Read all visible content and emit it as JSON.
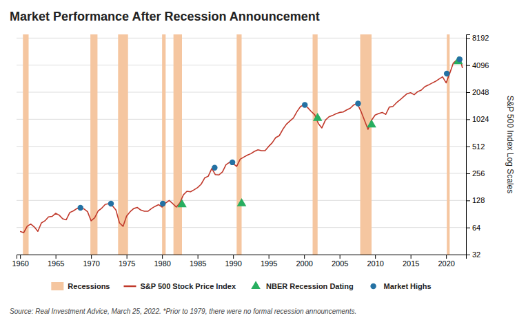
{
  "chart_data": {
    "type": "line",
    "title": "Market Performance After Recession Announcement",
    "ylabel": "S&P 500 Index Log Scales",
    "source": "Source: Real Investment Advice, March 25, 2022. *Prior to 1979, there were no formal recession announcements.",
    "log": "y",
    "grid": "y",
    "legend": "bottom",
    "xlim": [
      1959.5,
      2022.8
    ],
    "xticks": [
      1960,
      1965,
      1970,
      1975,
      1980,
      1985,
      1990,
      1995,
      2000,
      2005,
      2010,
      2015,
      2020
    ],
    "ylim": [
      32,
      9000
    ],
    "yticks": [
      32,
      64,
      128,
      256,
      512,
      1024,
      2048,
      4096,
      8192
    ],
    "recessions": {
      "name": "Recessions",
      "color": "#f5c6a0",
      "periods": [
        [
          1960.4,
          1961.2
        ],
        [
          1969.9,
          1970.9
        ],
        [
          1973.8,
          1975.2
        ],
        [
          1980.0,
          1980.5
        ],
        [
          1981.6,
          1982.8
        ],
        [
          1990.5,
          1991.2
        ],
        [
          2001.2,
          2001.9
        ],
        [
          2007.9,
          2009.5
        ],
        [
          2020.1,
          2020.5
        ]
      ]
    },
    "series": [
      {
        "name": "S&P 500 Stock Price Index",
        "type": "line",
        "color": "#c0392b",
        "x": [
          1960,
          1960.5,
          1961,
          1961.5,
          1962,
          1962.5,
          1963,
          1963.5,
          1964,
          1964.5,
          1965,
          1965.5,
          1966,
          1966.5,
          1967,
          1967.5,
          1968,
          1968.5,
          1969,
          1969.5,
          1970,
          1970.5,
          1971,
          1971.5,
          1972,
          1972.5,
          1973,
          1973.5,
          1974,
          1974.5,
          1975,
          1975.5,
          1976,
          1976.5,
          1977,
          1977.5,
          1978,
          1978.5,
          1979,
          1979.5,
          1980,
          1980.5,
          1981,
          1981.5,
          1982,
          1982.5,
          1983,
          1983.5,
          1984,
          1984.5,
          1985,
          1985.5,
          1986,
          1986.5,
          1987,
          1987.5,
          1988,
          1988.5,
          1989,
          1989.5,
          1990,
          1990.5,
          1991,
          1991.5,
          1992,
          1992.5,
          1993,
          1993.5,
          1994,
          1994.5,
          1995,
          1995.5,
          1996,
          1996.5,
          1997,
          1997.5,
          1998,
          1998.5,
          1999,
          1999.5,
          2000,
          2000.5,
          2001,
          2001.5,
          2002,
          2002.5,
          2003,
          2003.5,
          2004,
          2004.5,
          2005,
          2005.5,
          2006,
          2006.5,
          2007,
          2007.5,
          2008,
          2008.5,
          2009,
          2009.5,
          2010,
          2010.5,
          2011,
          2011.5,
          2012,
          2012.5,
          2013,
          2013.5,
          2014,
          2014.5,
          2015,
          2015.5,
          2016,
          2016.5,
          2017,
          2017.5,
          2018,
          2018.5,
          2019,
          2019.5,
          2020,
          2020.5,
          2021,
          2021.5,
          2022,
          2022.3
        ],
        "values": [
          58,
          56,
          66,
          70,
          65,
          58,
          72,
          76,
          84,
          85,
          92,
          88,
          80,
          78,
          94,
          98,
          104,
          106,
          103,
          96,
          76,
          82,
          98,
          105,
          116,
          118,
          112,
          100,
          72,
          66,
          86,
          96,
          104,
          107,
          100,
          97,
          97,
          104,
          110,
          115,
          108,
          120,
          128,
          118,
          108,
          120,
          148,
          162,
          160,
          168,
          178,
          194,
          228,
          238,
          290,
          248,
          246,
          266,
          320,
          340,
          330,
          306,
          368,
          388,
          408,
          424,
          450,
          468,
          458,
          458,
          510,
          560,
          640,
          672,
          790,
          900,
          980,
          1060,
          1248,
          1420,
          1480,
          1380,
          1250,
          1148,
          920,
          820,
          1000,
          1090,
          1128,
          1180,
          1220,
          1234,
          1300,
          1360,
          1480,
          1530,
          1260,
          1000,
          790,
          1000,
          1140,
          1186,
          1220,
          1160,
          1400,
          1420,
          1560,
          1680,
          1820,
          1970,
          2020,
          1920,
          2080,
          2160,
          2360,
          2460,
          2580,
          2700,
          2870,
          3040,
          2600,
          3300,
          4300,
          4680,
          4800,
          3800
        ]
      },
      {
        "name": "NBER Recession Dating",
        "type": "scatter",
        "marker": "triangle",
        "color": "#27ae60",
        "x": [
          1982.8,
          1991.2,
          2001.9,
          2009.5,
          2021.7
        ],
        "values": [
          115,
          118,
          1050,
          890,
          4500
        ]
      },
      {
        "name": "Market Highs",
        "type": "scatter",
        "marker": "circle",
        "color": "#2471a3",
        "x": [
          1968.5,
          1972.8,
          1980.1,
          1987.4,
          1989.9,
          2000.1,
          2007.6,
          2020.1,
          2021.9
        ],
        "values": [
          106,
          118,
          118,
          296,
          340,
          1480,
          1530,
          3300,
          4750
        ]
      }
    ]
  }
}
